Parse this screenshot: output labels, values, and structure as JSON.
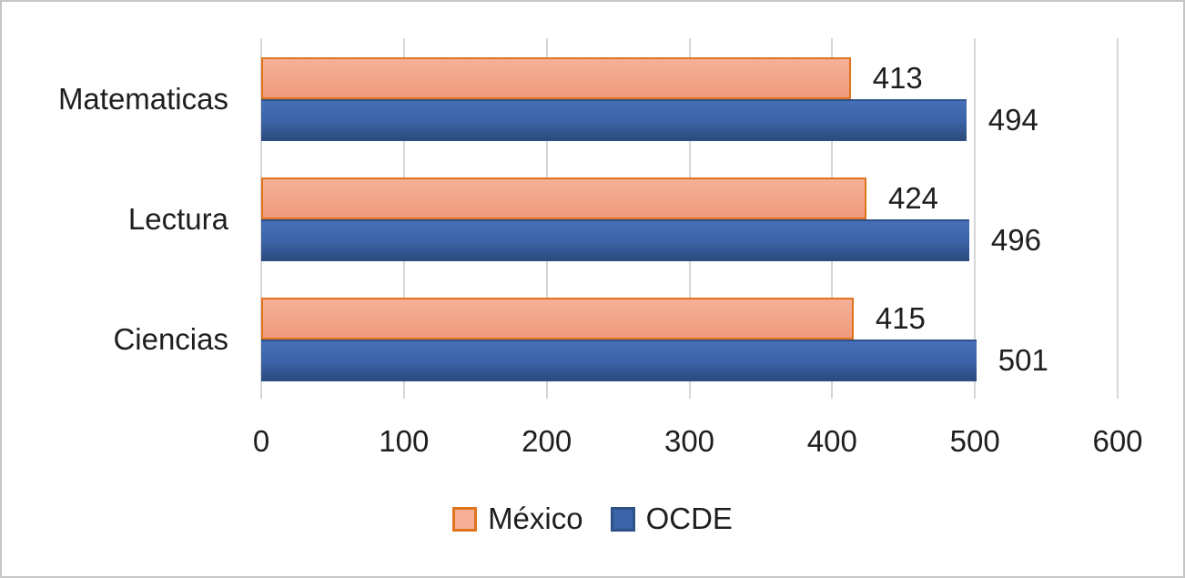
{
  "frame": {
    "background": "#FFFFFF",
    "border_color": "#C6C6C6"
  },
  "colors": {
    "mexico_fill_top": "#F6B098",
    "mexico_fill_bottom": "#EF9B7C",
    "mexico_border": "#E0731D",
    "ocde_fill_top": "#446EB6",
    "ocde_fill_mid": "#3C64A8",
    "ocde_fill_bottom": "#2B4B7D",
    "ocde_border": "#2E5287",
    "gridline": "#D6D6D6",
    "text": "#1E1E1E"
  },
  "chart_data": {
    "type": "bar",
    "orientation": "horizontal",
    "title": "",
    "xlabel": "",
    "ylabel": "",
    "categories": [
      "Matematicas",
      "Lectura",
      "Ciencias"
    ],
    "series": [
      {
        "name": "México",
        "values": [
          413,
          424,
          415
        ]
      },
      {
        "name": "OCDE",
        "values": [
          494,
          496,
          501
        ]
      }
    ],
    "data_labels": true,
    "xlim": [
      0,
      600
    ],
    "x_ticks": [
      0,
      100,
      200,
      300,
      400,
      500,
      600
    ],
    "grid": true,
    "legend_position": "bottom"
  }
}
